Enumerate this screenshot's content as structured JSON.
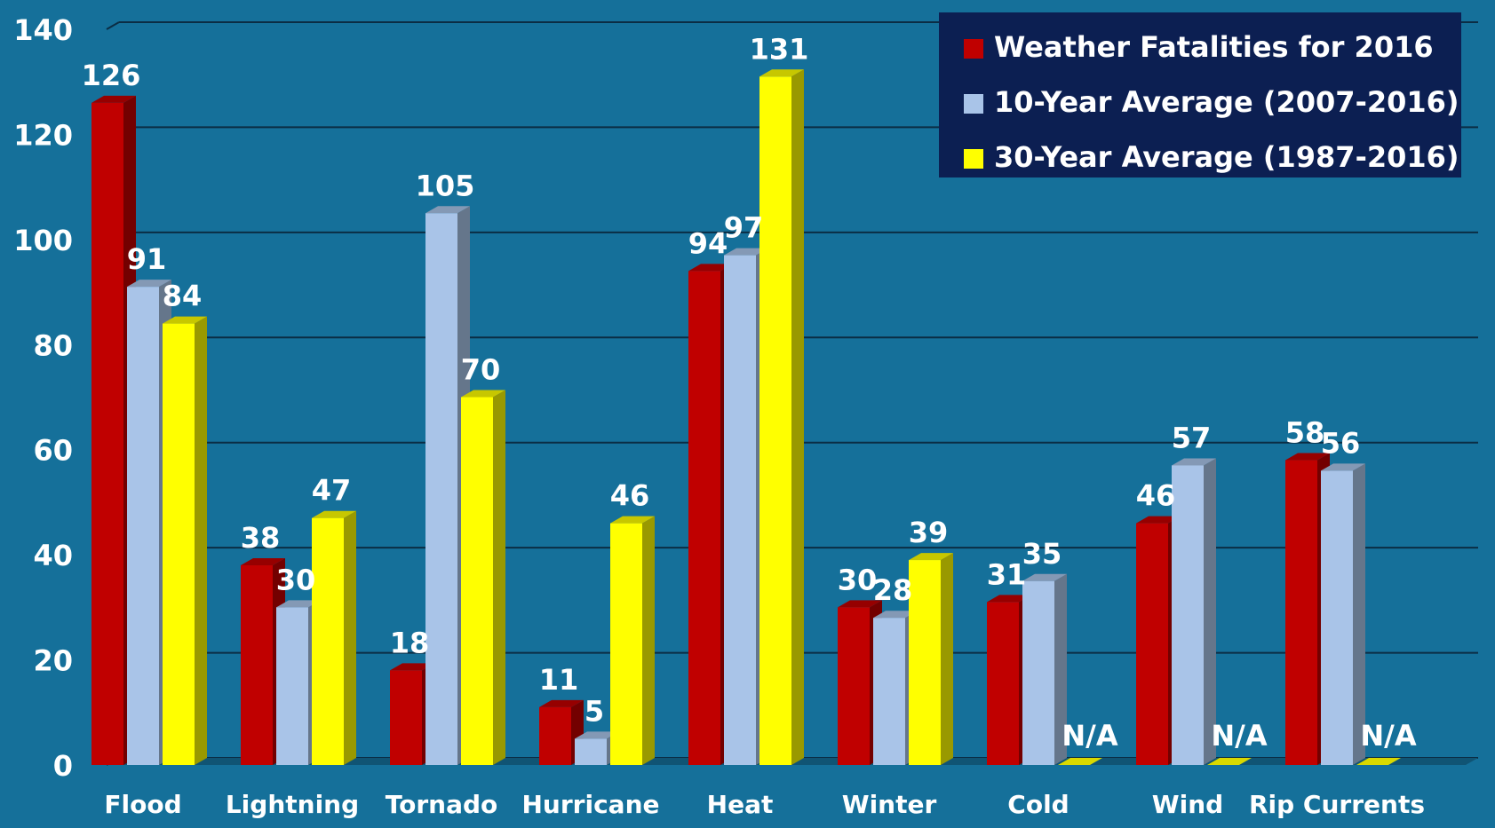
{
  "colors": {
    "background": "#15709a",
    "gridline": "#0b2d44",
    "text": "#ffffff",
    "legend_bg": "#0c1f52"
  },
  "chart_data": {
    "type": "bar",
    "style": "3d-clustered",
    "categories": [
      "Flood",
      "Lightning",
      "Tornado",
      "Hurricane",
      "Heat",
      "Winter",
      "Cold",
      "Wind",
      "Rip Currents"
    ],
    "series": [
      {
        "name": "Weather Fatalities for 2016",
        "color": "#c00000",
        "values": [
          126,
          38,
          18,
          11,
          94,
          30,
          31,
          46,
          58
        ]
      },
      {
        "name": "10-Year Average (2007-2016)",
        "color": "#a9c4e8",
        "values": [
          91,
          30,
          105,
          5,
          97,
          28,
          35,
          57,
          56
        ]
      },
      {
        "name": "30-Year Average (1987-2016)",
        "color": "#ffff00",
        "values": [
          84,
          47,
          70,
          46,
          131,
          39,
          null,
          null,
          null
        ]
      }
    ],
    "missing_label": "N/A",
    "ylim": [
      0,
      140
    ],
    "yticks": [
      0,
      20,
      40,
      60,
      80,
      100,
      120,
      140
    ],
    "grid": true,
    "legend_position": "top-right"
  }
}
